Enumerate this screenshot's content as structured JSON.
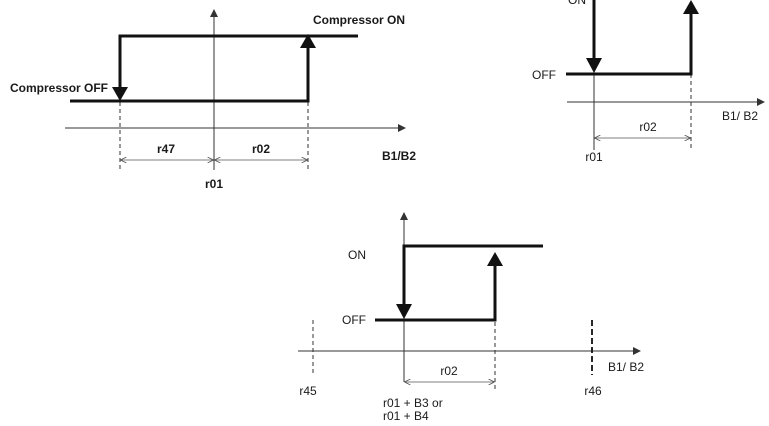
{
  "diagram1": {
    "on_label": "Compressor ON",
    "off_label": "Compressor OFF",
    "x_label": "B1/B2",
    "dim_left": "r47",
    "dim_right": "r02",
    "center_label": "r01"
  },
  "diagram2": {
    "on_label": "ON",
    "off_label": "OFF",
    "x_label": "B1/ B2",
    "dim": "r02",
    "center_label": "r01"
  },
  "diagram3": {
    "on_label": "ON",
    "off_label": "OFF",
    "x_label": "B1/ B2",
    "dim": "r02",
    "left_limit": "r45",
    "right_limit": "r46",
    "center_line1": "r01 + B3 or",
    "center_line2": "r01 + B4"
  }
}
